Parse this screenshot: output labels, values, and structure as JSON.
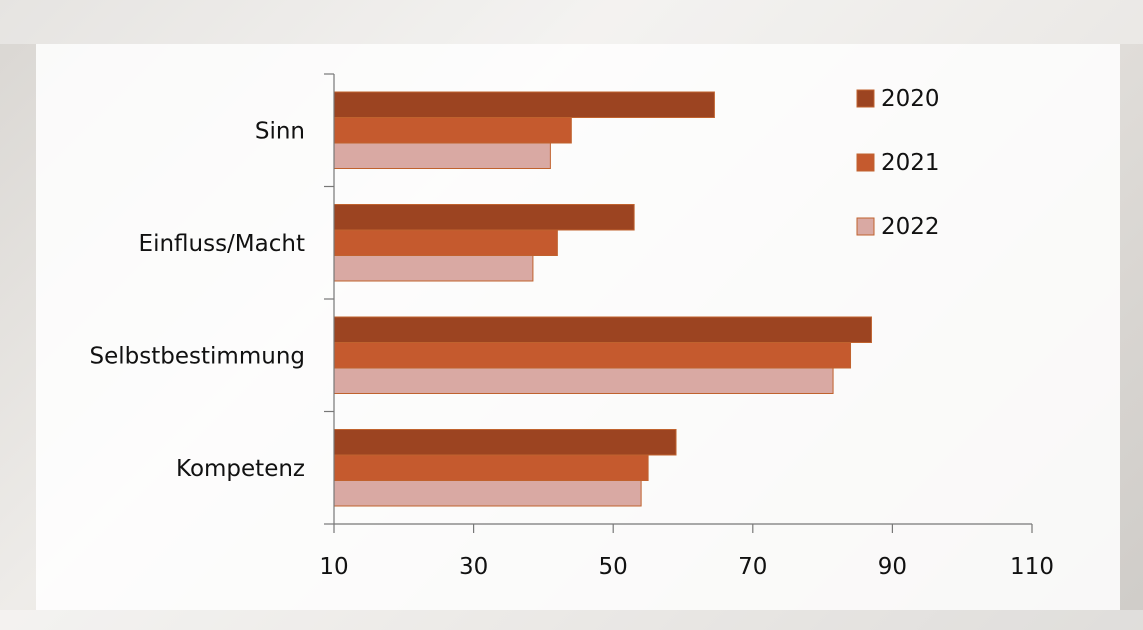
{
  "chart_data": {
    "type": "bar",
    "orientation": "horizontal",
    "title": "",
    "xlabel": "",
    "ylabel": "",
    "categories": [
      "Sinn",
      "Einfluss/Macht",
      "Selbstbestimmung",
      "Kompetenz"
    ],
    "series": [
      {
        "name": "2020",
        "color": "#9c4421",
        "values": [
          64.5,
          53,
          87,
          59
        ]
      },
      {
        "name": "2021",
        "color": "#c55a2e",
        "values": [
          44,
          42,
          84,
          55
        ]
      },
      {
        "name": "2022",
        "color": "#d9a9a3",
        "values": [
          41,
          38.5,
          81.5,
          54
        ]
      }
    ],
    "xlim": [
      10,
      110
    ],
    "xticks": [
      "10",
      "30",
      "50",
      "70",
      "90",
      "110"
    ],
    "grid": false,
    "legend": "top-right",
    "bar_outline_color": "#c0622e"
  }
}
